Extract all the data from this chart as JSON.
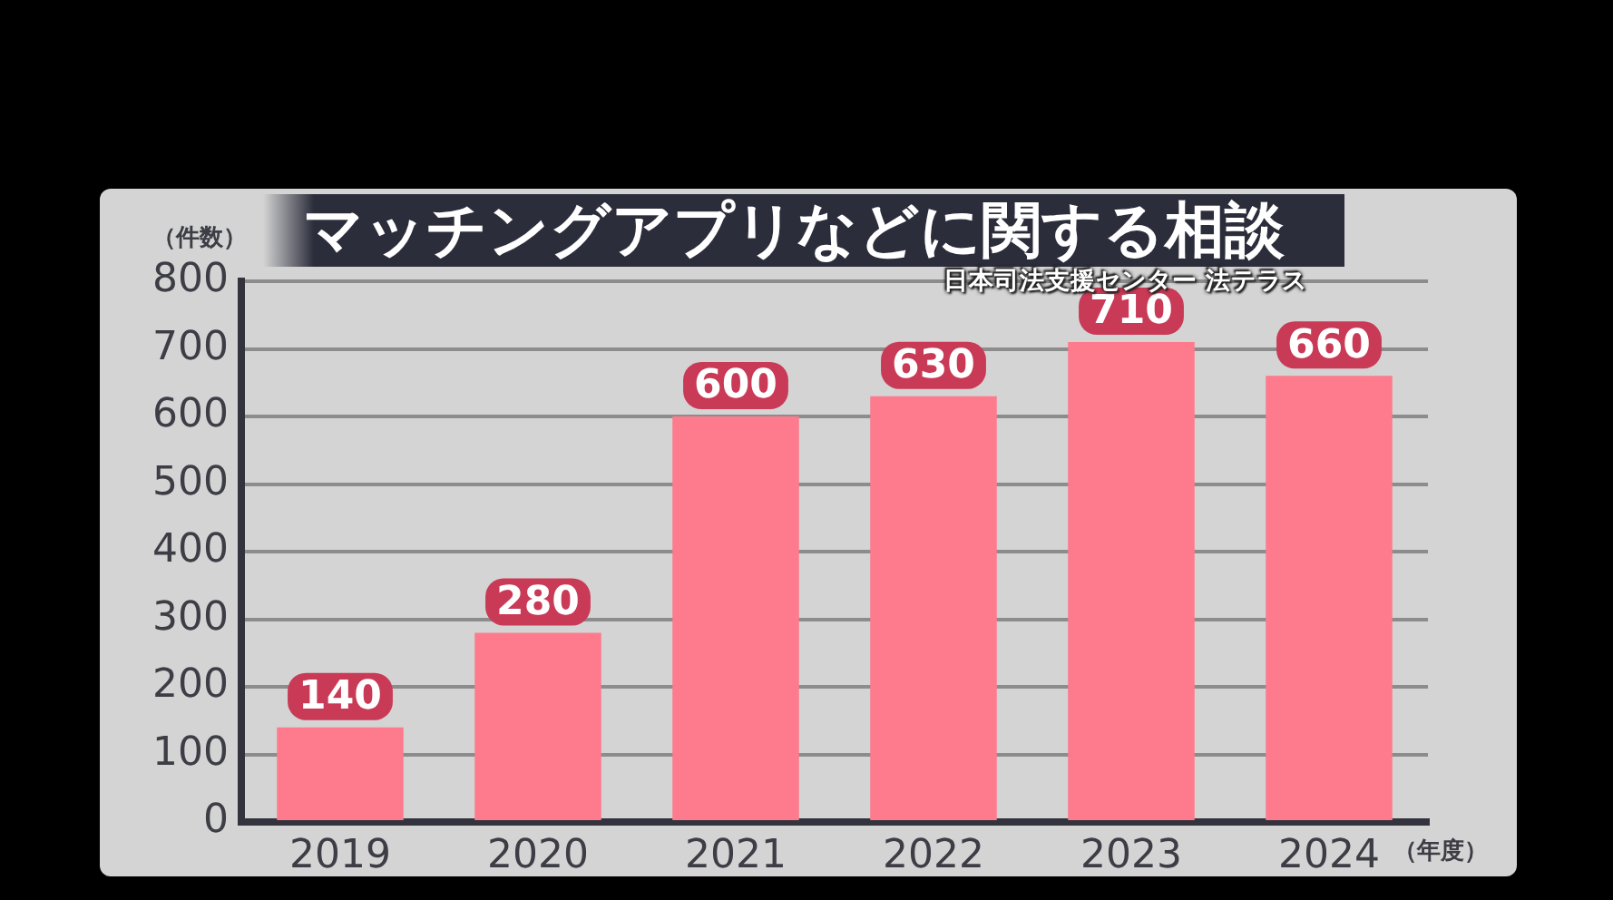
{
  "chart_data": {
    "type": "bar",
    "title": "マッチングアプリなどに関する相談",
    "annotations": [
      "日本司法支援センター 法テラス"
    ],
    "ylabel": "（件数）",
    "xlabel": "（年度）",
    "categories": [
      "2019",
      "2020",
      "2021",
      "2022",
      "2023",
      "2024"
    ],
    "values": [
      140,
      280,
      600,
      630,
      710,
      660
    ],
    "color": "#fd7b8c",
    "ylim": [
      0,
      800
    ],
    "yticks": [
      0,
      100,
      200,
      300,
      400,
      500,
      600,
      700,
      800
    ],
    "grid": "y",
    "data_labels": true
  }
}
